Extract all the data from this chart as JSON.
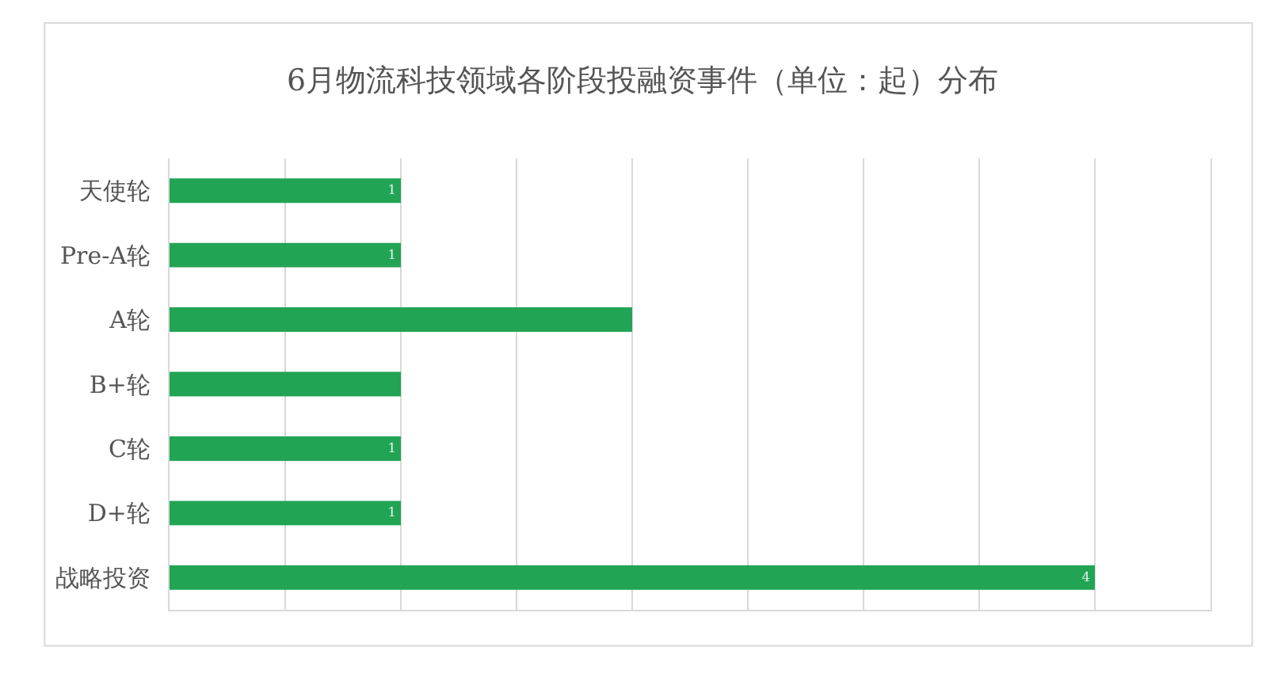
{
  "chart_data": {
    "type": "bar",
    "orientation": "horizontal",
    "title": "6月物流科技领域各阶段投融资事件（单位：起）分布",
    "categories": [
      "天使轮",
      "Pre-A轮",
      "A轮",
      "B+轮",
      "C轮",
      "D+轮",
      "战略投资"
    ],
    "values": [
      1,
      1,
      2,
      1,
      1,
      1,
      4
    ],
    "value_labels": [
      "1",
      "1",
      null,
      null,
      "1",
      "1",
      "4"
    ],
    "color": "#22a455",
    "xlim": [
      0,
      4.5
    ],
    "xticks": [
      {
        "value": 0,
        "label": null
      },
      {
        "value": 0.5,
        "label": null
      },
      {
        "value": 1,
        "label": null
      },
      {
        "value": 1.5,
        "label": null
      },
      {
        "value": 2,
        "label": null
      },
      {
        "value": 2.5,
        "label": null
      },
      {
        "value": 3,
        "label": null
      },
      {
        "value": 3.5,
        "label": null
      },
      {
        "value": 4,
        "label": null
      }
    ],
    "grid": "x",
    "tick_labels": "y",
    "legend": false
  }
}
